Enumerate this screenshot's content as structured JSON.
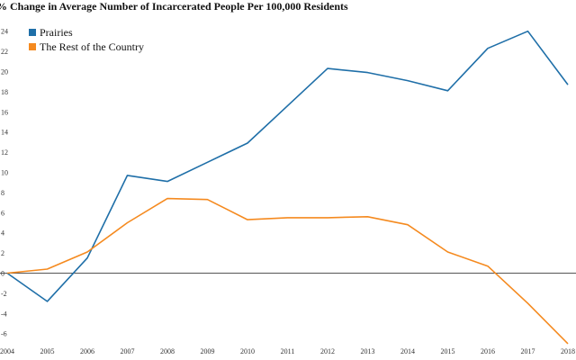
{
  "chart_data": {
    "type": "line",
    "title": "% Change in Average Number of Incarcerated People Per 100,000 Residents",
    "xlabel": "",
    "ylabel": "",
    "categories": [
      "2004",
      "2005",
      "2006",
      "2007",
      "2008",
      "2009",
      "2010",
      "2011",
      "2012",
      "2013",
      "2014",
      "2015",
      "2016",
      "2017",
      "2018"
    ],
    "y_ticks": [
      "-6",
      "-4",
      "-2",
      "0",
      "2",
      "4",
      "6",
      "8",
      "10",
      "12",
      "14",
      "16",
      "18",
      "20",
      "22",
      "24"
    ],
    "ylim": [
      -7,
      25
    ],
    "legend_position": "top-left",
    "zero_line": true,
    "grid": false,
    "series": [
      {
        "name": "Prairies",
        "color": "#1f6fa8",
        "values": [
          0,
          -2.8,
          1.5,
          9.7,
          9.1,
          11.0,
          12.9,
          16.6,
          20.3,
          19.9,
          19.1,
          18.1,
          22.3,
          24.0,
          18.7
        ]
      },
      {
        "name": "The Rest of the Country",
        "color": "#f58a1f",
        "values": [
          0,
          0.4,
          2.1,
          5.0,
          7.4,
          7.3,
          5.3,
          5.5,
          5.5,
          5.6,
          4.8,
          2.1,
          0.7,
          -3.0,
          -7.0
        ]
      }
    ]
  }
}
